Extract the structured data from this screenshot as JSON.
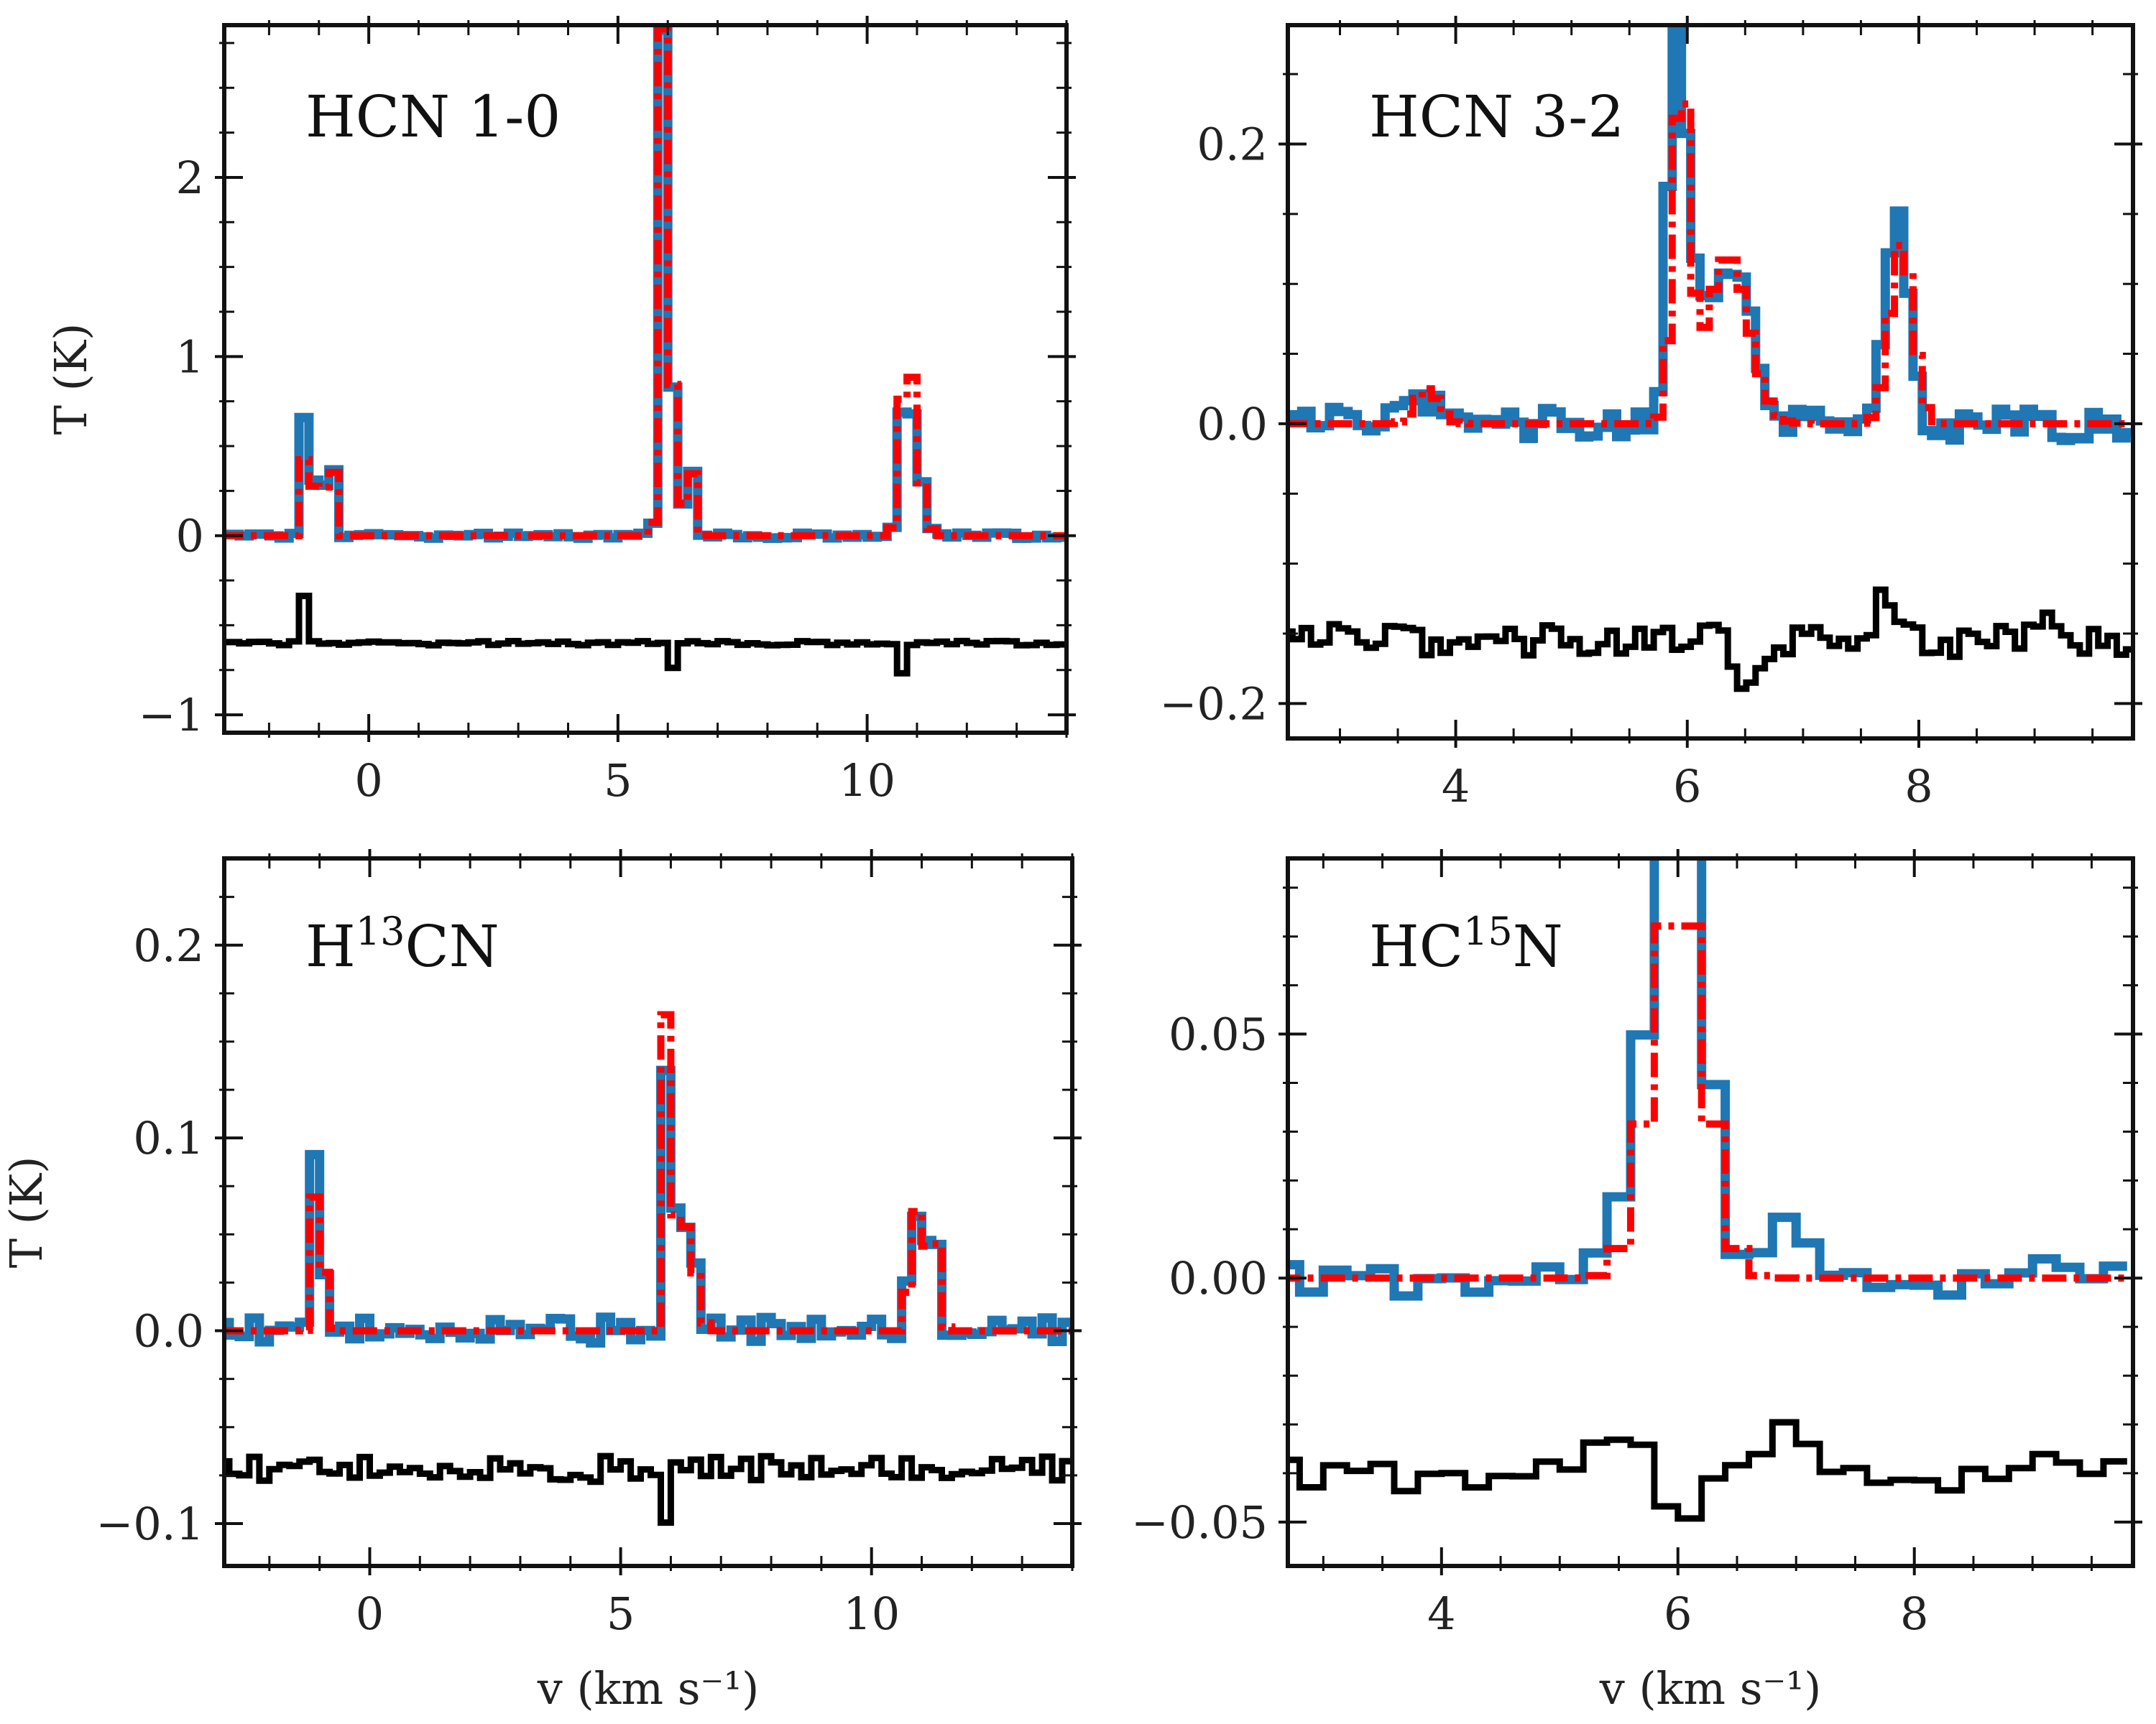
{
  "colors": {
    "observed": "#1f77b4",
    "model": "#ff0000",
    "residual": "#000000"
  },
  "chart_data": [
    {
      "type": "line",
      "panel_label": {
        "main": "HCN 1-0",
        "sup": "",
        "tail": ""
      },
      "xlabel": "",
      "ylabel": "T (K)",
      "xlim": [
        -2.9,
        14.0
      ],
      "ylim": [
        -1.1,
        2.85
      ],
      "xticks": [
        0,
        5,
        10
      ],
      "xtick_labels": [
        "0",
        "5",
        "10"
      ],
      "xminor": 1,
      "yticks": [
        -1,
        0,
        1,
        2
      ],
      "ytick_labels": [
        "−1",
        "0",
        "1",
        "2"
      ],
      "yminor": 0.25,
      "bin": 0.2,
      "series": [
        {
          "name": "observed",
          "style": "obs",
          "peaks": [
            [
              -1.25,
              0.95,
              0.06
            ],
            [
              -1.0,
              1.05,
              0.06
            ],
            [
              -0.75,
              0.52,
              0.06
            ],
            [
              5.85,
              1.7,
              0.06
            ],
            [
              5.95,
              2.65,
              0.05
            ],
            [
              6.15,
              1.05,
              0.07
            ],
            [
              6.45,
              0.42,
              0.08
            ],
            [
              10.65,
              0.9,
              0.06
            ],
            [
              10.85,
              0.98,
              0.06
            ],
            [
              11.15,
              0.38,
              0.07
            ]
          ],
          "baseline": 0,
          "noise": 0.015
        },
        {
          "name": "model",
          "style": "mod",
          "peaks": [
            [
              -1.25,
              0.6,
              0.06
            ],
            [
              -1.0,
              1.0,
              0.06
            ],
            [
              -0.75,
              0.5,
              0.06
            ],
            [
              5.85,
              1.7,
              0.06
            ],
            [
              5.95,
              2.68,
              0.05
            ],
            [
              6.15,
              1.05,
              0.07
            ],
            [
              6.45,
              0.42,
              0.08
            ],
            [
              10.65,
              1.0,
              0.06
            ],
            [
              10.85,
              1.25,
              0.06
            ],
            [
              11.15,
              0.38,
              0.07
            ]
          ],
          "baseline": 0,
          "noise": 0
        },
        {
          "name": "residual",
          "style": "res",
          "peaks": [
            [
              -1.25,
              0.45,
              0.05
            ],
            [
              6.05,
              -0.18,
              0.06
            ],
            [
              10.65,
              -0.25,
              0.06
            ]
          ],
          "baseline": -0.6,
          "noise": 0.012
        }
      ]
    },
    {
      "type": "line",
      "panel_label": {
        "main": "HCN 3-2",
        "sup": "",
        "tail": ""
      },
      "xlabel": "",
      "ylabel": "",
      "xlim": [
        2.55,
        9.85
      ],
      "ylim": [
        -0.225,
        0.285
      ],
      "xticks": [
        4,
        6,
        8
      ],
      "xtick_labels": [
        "4",
        "6",
        "8"
      ],
      "xminor": 0.5,
      "yticks": [
        -0.2,
        0.0,
        0.2
      ],
      "ytick_labels": [
        "−0.2",
        "0.0",
        "0.2"
      ],
      "yminor": 0.05,
      "bin": 0.08,
      "series": [
        {
          "name": "observed",
          "style": "obs",
          "peaks": [
            [
              5.9,
              0.26,
              0.06
            ],
            [
              6.0,
              0.12,
              0.1
            ],
            [
              6.4,
              0.11,
              0.18
            ],
            [
              7.8,
              0.15,
              0.1
            ],
            [
              3.8,
              0.02,
              0.15
            ]
          ],
          "baseline": 0,
          "noise": 0.012
        },
        {
          "name": "model",
          "style": "mod",
          "peaks": [
            [
              5.95,
              0.25,
              0.07
            ],
            [
              6.35,
              0.12,
              0.18
            ],
            [
              7.85,
              0.13,
              0.1
            ],
            [
              3.75,
              0.025,
              0.1
            ]
          ],
          "baseline": 0,
          "noise": 0
        },
        {
          "name": "residual",
          "style": "res",
          "peaks": [
            [
              7.7,
              0.05,
              0.06
            ],
            [
              6.5,
              -0.04,
              0.08
            ],
            [
              9.2,
              0.02,
              0.1
            ]
          ],
          "baseline": -0.155,
          "noise": 0.012
        }
      ]
    },
    {
      "type": "line",
      "panel_label": {
        "main": "H",
        "sup": "13",
        "tail": "CN"
      },
      "xlabel": "v (km s⁻¹)",
      "ylabel": "T (K)",
      "xlim": [
        -2.9,
        14.0
      ],
      "ylim": [
        -0.122,
        0.245
      ],
      "xticks": [
        0,
        5,
        10
      ],
      "xtick_labels": [
        "0",
        "5",
        "10"
      ],
      "xminor": 1,
      "yticks": [
        -0.1,
        0.0,
        0.1,
        0.2
      ],
      "ytick_labels": [
        "−0.1",
        "0.0",
        "0.1",
        "0.2"
      ],
      "yminor": 0.025,
      "bin": 0.2,
      "series": [
        {
          "name": "observed",
          "style": "obs",
          "peaks": [
            [
              -1.1,
              0.085,
              0.06
            ],
            [
              -0.9,
              0.03,
              0.08
            ],
            [
              5.95,
              0.2,
              0.06
            ],
            [
              6.2,
              0.2,
              0.06
            ],
            [
              6.5,
              0.03,
              0.1
            ],
            [
              10.8,
              0.08,
              0.06
            ],
            [
              11.0,
              0.175,
              0.06
            ],
            [
              11.3,
              0.045,
              0.08
            ]
          ],
          "baseline": 0,
          "noise": 0.007
        },
        {
          "name": "model",
          "style": "mod",
          "peaks": [
            [
              -1.1,
              0.068,
              0.06
            ],
            [
              -0.9,
              0.03,
              0.08
            ],
            [
              5.95,
              0.232,
              0.06
            ],
            [
              6.2,
              0.2,
              0.06
            ],
            [
              6.5,
              0.03,
              0.1
            ],
            [
              10.8,
              0.08,
              0.06
            ],
            [
              11.0,
              0.168,
              0.06
            ],
            [
              11.3,
              0.045,
              0.08
            ]
          ],
          "baseline": 0,
          "noise": 0
        },
        {
          "name": "residual",
          "style": "res",
          "peaks": [
            [
              5.95,
              -0.03,
              0.06
            ],
            [
              3.8,
              -0.025,
              0.08
            ]
          ],
          "baseline": -0.072,
          "noise": 0.007
        }
      ]
    },
    {
      "type": "line",
      "panel_label": {
        "main": "HC",
        "sup": "15",
        "tail": "N"
      },
      "xlabel": "v (km s⁻¹)",
      "ylabel": "",
      "xlim": [
        2.7,
        9.85
      ],
      "ylim": [
        -0.059,
        0.086
      ],
      "xticks": [
        4,
        6,
        8
      ],
      "xtick_labels": [
        "4",
        "6",
        "8"
      ],
      "xminor": 0.5,
      "yticks": [
        -0.05,
        0.0,
        0.05
      ],
      "ytick_labels": [
        "−0.05",
        "0.00",
        "0.05"
      ],
      "yminor": 0.01,
      "bin": 0.2,
      "series": [
        {
          "name": "observed",
          "style": "obs",
          "peaks": [
            [
              5.9,
              0.072,
              0.2
            ],
            [
              6.1,
              0.075,
              0.15
            ],
            [
              5.5,
              0.01,
              0.15
            ],
            [
              6.9,
              0.01,
              0.2
            ]
          ],
          "baseline": 0,
          "noise": 0.004
        },
        {
          "name": "model",
          "style": "mod",
          "peaks": [
            [
              6.0,
              0.08,
              0.22
            ]
          ],
          "baseline": 0,
          "noise": 0
        },
        {
          "name": "residual",
          "style": "res",
          "peaks": [
            [
              5.5,
              0.01,
              0.2
            ],
            [
              6.9,
              0.008,
              0.2
            ],
            [
              6.0,
              -0.01,
              0.1
            ]
          ],
          "baseline": -0.04,
          "noise": 0.004
        }
      ]
    }
  ]
}
